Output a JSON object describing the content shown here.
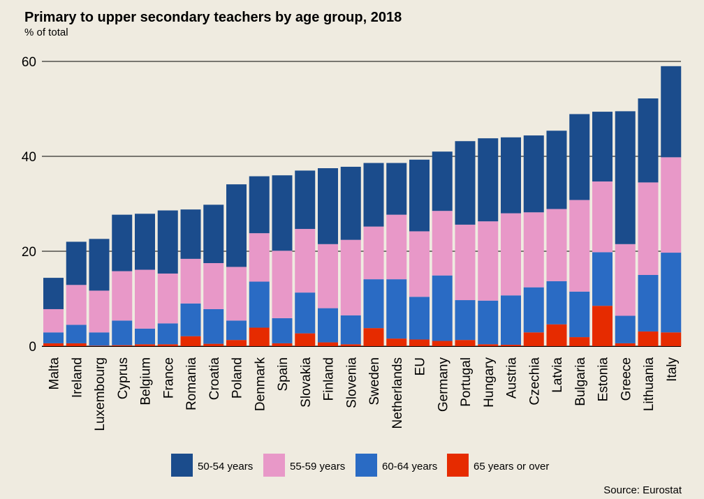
{
  "chart_data": {
    "type": "bar",
    "stacked": true,
    "title": "Primary to upper secondary teachers by age group, 2018",
    "subtitle": "% of total",
    "source": "Source: Eurostat",
    "ylim": [
      0,
      60
    ],
    "yticks": [
      "0",
      "20",
      "40",
      "60"
    ],
    "legend_position": "bottom",
    "categories": [
      "Malta",
      "Ireland",
      "Luxembourg",
      "Cyprus",
      "Belgium",
      "France",
      "Romania",
      "Croatia",
      "Poland",
      "Denmark",
      "Spain",
      "Slovakia",
      "Finland",
      "Slovenia",
      "Sweden",
      "Netherlands",
      "EU",
      "Germany",
      "Portugal",
      "Hungary",
      "Austria",
      "Czechia",
      "Latvia",
      "Bulgaria",
      "Estonia",
      "Greece",
      "Lithuania",
      "Italy"
    ],
    "series": [
      {
        "name": "65 years or over",
        "color": "#e62b00",
        "values": [
          0.6,
          0.6,
          0.1,
          0.2,
          0.4,
          0.4,
          2.1,
          0.5,
          1.3,
          3.9,
          0.6,
          2.7,
          0.8,
          0.4,
          3.8,
          1.6,
          1.4,
          1.1,
          1.3,
          0.4,
          0.3,
          2.9,
          4.6,
          1.9,
          8.5,
          0.6,
          3.1,
          2.9
        ]
      },
      {
        "name": "60-64 years",
        "color": "#2a6bc4",
        "values": [
          2.3,
          3.9,
          2.8,
          5.2,
          3.3,
          4.4,
          6.9,
          7.3,
          4.1,
          9.7,
          5.3,
          8.6,
          7.2,
          6.1,
          10.3,
          12.5,
          9.0,
          13.8,
          8.4,
          9.2,
          10.4,
          9.5,
          9.1,
          9.6,
          11.3,
          5.8,
          11.9,
          16.8
        ]
      },
      {
        "name": "55-59 years",
        "color": "#e898c8",
        "values": [
          4.9,
          8.4,
          8.8,
          10.4,
          12.4,
          10.5,
          9.4,
          9.7,
          11.3,
          10.2,
          14.2,
          13.4,
          13.5,
          15.9,
          11.1,
          13.6,
          13.8,
          13.6,
          15.9,
          16.7,
          17.3,
          15.8,
          15.2,
          19.3,
          14.9,
          15.1,
          19.5,
          20.1
        ]
      },
      {
        "name": "50-54 years",
        "color": "#1b4c8c",
        "values": [
          6.6,
          9.1,
          10.9,
          11.9,
          11.8,
          13.3,
          10.4,
          12.3,
          17.4,
          12.0,
          15.9,
          12.3,
          16.0,
          15.4,
          13.4,
          10.9,
          15.1,
          12.5,
          17.6,
          17.5,
          16.0,
          16.2,
          16.5,
          18.1,
          14.7,
          28.0,
          17.7,
          19.2
        ]
      }
    ],
    "legend_order": [
      "50-54 years",
      "55-59 years",
      "60-64 years",
      "65 years or over"
    ]
  }
}
